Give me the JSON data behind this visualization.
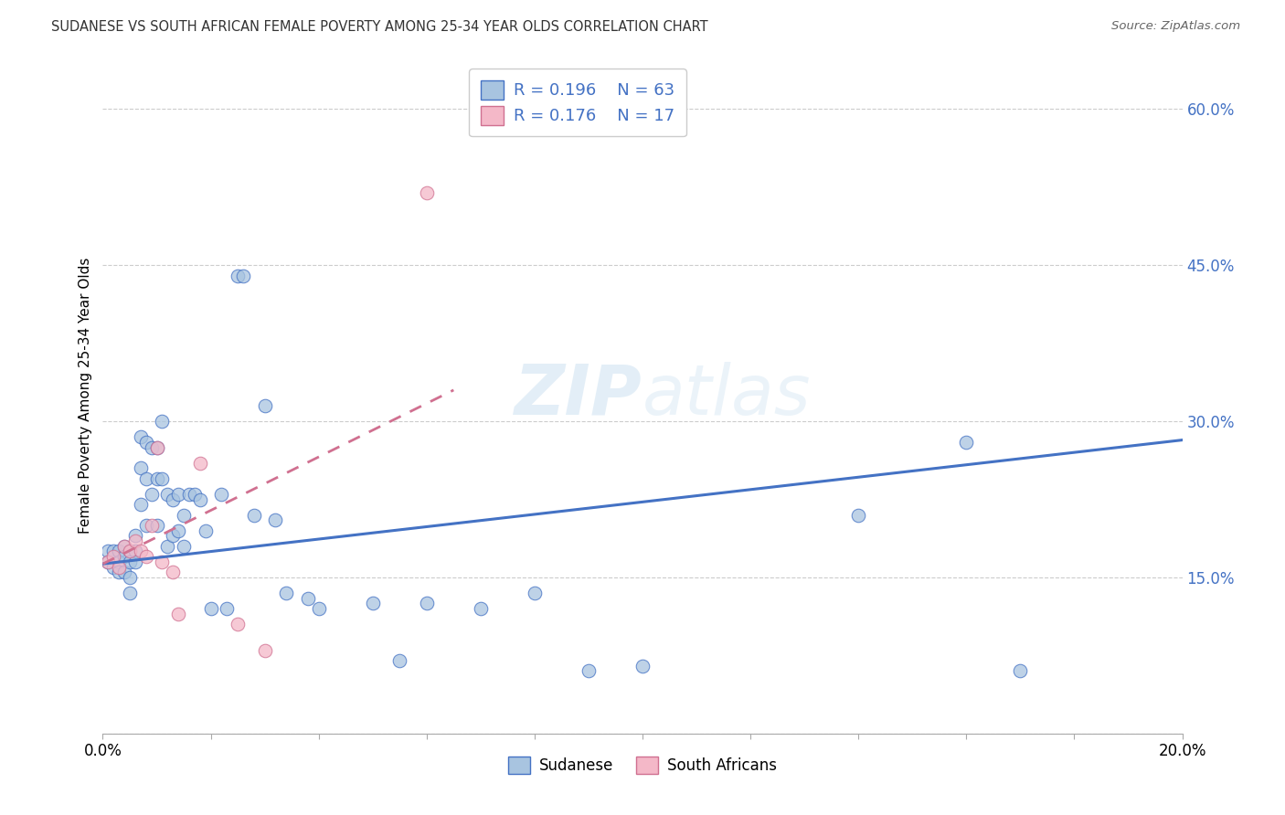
{
  "title": "SUDANESE VS SOUTH AFRICAN FEMALE POVERTY AMONG 25-34 YEAR OLDS CORRELATION CHART",
  "source": "Source: ZipAtlas.com",
  "ylabel": "Female Poverty Among 25-34 Year Olds",
  "xlim": [
    0.0,
    0.2
  ],
  "ylim": [
    0.0,
    0.65
  ],
  "xticks": [
    0.0,
    0.02,
    0.04,
    0.06,
    0.08,
    0.1,
    0.12,
    0.14,
    0.16,
    0.18,
    0.2
  ],
  "ytick_vals": [
    0.0,
    0.15,
    0.3,
    0.45,
    0.6
  ],
  "color_sudanese": "#a8c4e0",
  "color_south_african": "#f4b8c8",
  "color_line_sudanese": "#4472c4",
  "color_line_sa": "#d07090",
  "sudanese_x": [
    0.001,
    0.001,
    0.002,
    0.002,
    0.003,
    0.003,
    0.003,
    0.004,
    0.004,
    0.004,
    0.005,
    0.005,
    0.005,
    0.005,
    0.006,
    0.006,
    0.006,
    0.007,
    0.007,
    0.007,
    0.008,
    0.008,
    0.008,
    0.009,
    0.009,
    0.01,
    0.01,
    0.01,
    0.011,
    0.011,
    0.012,
    0.012,
    0.013,
    0.013,
    0.014,
    0.014,
    0.015,
    0.015,
    0.016,
    0.017,
    0.018,
    0.019,
    0.02,
    0.022,
    0.023,
    0.025,
    0.026,
    0.028,
    0.03,
    0.032,
    0.034,
    0.038,
    0.04,
    0.05,
    0.055,
    0.06,
    0.07,
    0.08,
    0.09,
    0.1,
    0.14,
    0.16,
    0.17
  ],
  "sudanese_y": [
    0.175,
    0.165,
    0.175,
    0.16,
    0.175,
    0.165,
    0.155,
    0.18,
    0.17,
    0.155,
    0.175,
    0.165,
    0.15,
    0.135,
    0.19,
    0.175,
    0.165,
    0.285,
    0.255,
    0.22,
    0.28,
    0.245,
    0.2,
    0.275,
    0.23,
    0.275,
    0.245,
    0.2,
    0.3,
    0.245,
    0.23,
    0.18,
    0.225,
    0.19,
    0.23,
    0.195,
    0.21,
    0.18,
    0.23,
    0.23,
    0.225,
    0.195,
    0.12,
    0.23,
    0.12,
    0.44,
    0.44,
    0.21,
    0.315,
    0.205,
    0.135,
    0.13,
    0.12,
    0.125,
    0.07,
    0.125,
    0.12,
    0.135,
    0.06,
    0.065,
    0.21,
    0.28,
    0.06
  ],
  "sa_x": [
    0.001,
    0.002,
    0.003,
    0.004,
    0.005,
    0.006,
    0.007,
    0.008,
    0.009,
    0.01,
    0.011,
    0.013,
    0.014,
    0.018,
    0.025,
    0.03,
    0.06
  ],
  "sa_y": [
    0.165,
    0.17,
    0.16,
    0.18,
    0.175,
    0.185,
    0.175,
    0.17,
    0.2,
    0.275,
    0.165,
    0.155,
    0.115,
    0.26,
    0.105,
    0.08,
    0.52
  ],
  "line_blue_x0": 0.0,
  "line_blue_x1": 0.2,
  "line_blue_y0": 0.163,
  "line_blue_y1": 0.282,
  "line_pink_x0": 0.0,
  "line_pink_x1": 0.065,
  "line_pink_y0": 0.163,
  "line_pink_y1": 0.33
}
